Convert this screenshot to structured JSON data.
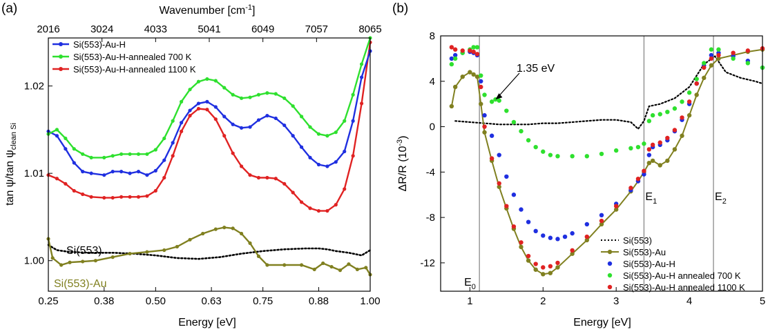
{
  "chart_data": [
    {
      "panel_label": "(a)",
      "type": "line",
      "xlabel": "Energy [eV]",
      "ylabel": "tan ψ/tan ψ",
      "ylabel_sub": "clean Si",
      "top_xlabel": "Wavenumber [cm",
      "top_xlabel_sup": "-1",
      "top_xlabel_end": "]",
      "xlim": [
        0.25,
        1.0
      ],
      "ylim": [
        0.9965,
        1.0255
      ],
      "xticks": [
        0.25,
        0.38,
        0.5,
        0.63,
        0.75,
        0.88,
        1.0
      ],
      "xtick_labels": [
        "0.25",
        "0.38",
        "0.50",
        "0.63",
        "0.75",
        "0.88",
        "1.00"
      ],
      "yticks": [
        1.0,
        1.01,
        1.02
      ],
      "ytick_labels": [
        "1.00",
        "1.01",
        "1.02"
      ],
      "top_xticks": [
        0.25,
        0.375,
        0.5,
        0.625,
        0.75,
        0.875,
        1.0
      ],
      "top_xtick_labels": [
        "2016",
        "3024",
        "4033",
        "5041",
        "6049",
        "7057",
        "8065"
      ],
      "legend_position": "top-left",
      "series": [
        {
          "name": "Si(553)-Au-H",
          "color": "#1f2fe0",
          "style": "line-markers",
          "x": [
            0.25,
            0.27,
            0.29,
            0.31,
            0.33,
            0.35,
            0.38,
            0.4,
            0.42,
            0.44,
            0.46,
            0.48,
            0.5,
            0.52,
            0.54,
            0.56,
            0.58,
            0.6,
            0.62,
            0.64,
            0.66,
            0.68,
            0.7,
            0.72,
            0.74,
            0.76,
            0.78,
            0.8,
            0.82,
            0.84,
            0.86,
            0.88,
            0.9,
            0.92,
            0.94,
            0.96,
            0.98,
            1.0
          ],
          "y": [
            1.0148,
            1.0143,
            1.0128,
            1.0112,
            1.0102,
            1.01,
            1.0098,
            1.0102,
            1.0102,
            1.01,
            1.0102,
            1.0098,
            1.0103,
            1.0115,
            1.0135,
            1.0158,
            1.0172,
            1.018,
            1.0182,
            1.0176,
            1.0165,
            1.0156,
            1.0152,
            1.0153,
            1.0161,
            1.0166,
            1.0163,
            1.0155,
            1.0143,
            1.013,
            1.0118,
            1.011,
            1.0108,
            1.0113,
            1.0125,
            1.016,
            1.021,
            1.024
          ]
        },
        {
          "name": "Si(553)-Au-H-annealed 700 K",
          "color": "#2ee02e",
          "style": "line-markers",
          "x": [
            0.25,
            0.27,
            0.29,
            0.31,
            0.33,
            0.35,
            0.38,
            0.4,
            0.42,
            0.44,
            0.46,
            0.48,
            0.5,
            0.52,
            0.54,
            0.56,
            0.58,
            0.6,
            0.62,
            0.64,
            0.66,
            0.68,
            0.7,
            0.72,
            0.74,
            0.76,
            0.78,
            0.8,
            0.82,
            0.84,
            0.86,
            0.88,
            0.9,
            0.92,
            0.94,
            0.96,
            0.98,
            1.0
          ],
          "y": [
            1.0145,
            1.015,
            1.014,
            1.0128,
            1.0122,
            1.0118,
            1.0118,
            1.012,
            1.0122,
            1.0122,
            1.0122,
            1.0122,
            1.0127,
            1.014,
            1.016,
            1.0182,
            1.0196,
            1.0205,
            1.0208,
            1.0206,
            1.0198,
            1.019,
            1.0186,
            1.0187,
            1.019,
            1.0192,
            1.0191,
            1.0186,
            1.0177,
            1.0165,
            1.0153,
            1.0145,
            1.0143,
            1.0147,
            1.016,
            1.019,
            1.0225,
            1.0255
          ]
        },
        {
          "name": "Si(553)-Au-H-annealed 1100 K",
          "color": "#e02222",
          "style": "line-markers",
          "x": [
            0.25,
            0.27,
            0.29,
            0.31,
            0.33,
            0.35,
            0.38,
            0.4,
            0.42,
            0.44,
            0.46,
            0.48,
            0.5,
            0.52,
            0.54,
            0.56,
            0.58,
            0.6,
            0.62,
            0.64,
            0.66,
            0.68,
            0.7,
            0.72,
            0.74,
            0.76,
            0.78,
            0.8,
            0.82,
            0.84,
            0.86,
            0.88,
            0.9,
            0.92,
            0.94,
            0.96,
            0.98,
            1.0
          ],
          "y": [
            1.0098,
            1.0094,
            1.0088,
            1.008,
            1.0076,
            1.0073,
            1.0072,
            1.0072,
            1.0073,
            1.0073,
            1.0073,
            1.0074,
            1.008,
            1.0095,
            1.012,
            1.0148,
            1.0166,
            1.0174,
            1.0173,
            1.0162,
            1.0143,
            1.0123,
            1.0108,
            1.0098,
            1.0095,
            1.0095,
            1.0094,
            1.0088,
            1.0078,
            1.0067,
            1.006,
            1.0057,
            1.0057,
            1.0064,
            1.0082,
            1.012,
            1.018,
            1.025
          ]
        },
        {
          "name": "Si(553)-Au",
          "color": "#808020",
          "style": "line-markers",
          "x": [
            0.25,
            0.26,
            0.28,
            0.3,
            0.33,
            0.36,
            0.4,
            0.44,
            0.48,
            0.52,
            0.55,
            0.58,
            0.61,
            0.64,
            0.66,
            0.68,
            0.7,
            0.72,
            0.74,
            0.76,
            0.8,
            0.84,
            0.87,
            0.89,
            0.91,
            0.93,
            0.95,
            0.97,
            0.99,
            1.0
          ],
          "y": [
            1.0025,
            1.0003,
            0.9995,
            0.9998,
            0.9999,
            1.0,
            1.0004,
            1.0008,
            1.001,
            1.0012,
            1.0016,
            1.0024,
            1.0031,
            1.0036,
            1.0038,
            1.0037,
            1.0031,
            1.002,
            1.0005,
            0.9995,
            0.9995,
            0.9995,
            0.999,
            0.9997,
            0.9993,
            0.9989,
            0.9996,
            0.999,
            0.9992,
            0.9984
          ]
        },
        {
          "name": "Si(553)",
          "color": "#000000",
          "style": "dotted",
          "x": [
            0.25,
            0.27,
            0.3,
            0.35,
            0.4,
            0.45,
            0.5,
            0.55,
            0.6,
            0.65,
            0.7,
            0.75,
            0.8,
            0.85,
            0.88,
            0.9,
            0.92,
            0.95,
            0.98,
            1.0
          ],
          "y": [
            1.0018,
            1.0012,
            1.001,
            1.0009,
            1.0009,
            1.0008,
            1.0006,
            1.0003,
            1.0002,
            1.0004,
            1.0008,
            1.0011,
            1.0013,
            1.0014,
            1.0014,
            1.0013,
            1.0011,
            1.0009,
            1.0006,
            1.0012
          ]
        }
      ],
      "curve_labels": [
        "Si(553)",
        "Si(553)-Au"
      ]
    },
    {
      "panel_label": "(b)",
      "type": "scatter",
      "xlabel": "Energy [eV]",
      "ylabel": "ΔR/R (10",
      "ylabel_sup": "-3",
      "ylabel_end": ")",
      "xlim": [
        0.6,
        5.0
      ],
      "ylim": [
        -14.5,
        8.0
      ],
      "xticks": [
        1,
        2,
        3,
        4,
        5
      ],
      "xtick_labels": [
        "1",
        "2",
        "3",
        "4",
        "5"
      ],
      "yticks": [
        8,
        4,
        0,
        -4,
        -8,
        -12
      ],
      "ytick_labels": [
        "8",
        "4",
        "0",
        "-4",
        "-8",
        "-12"
      ],
      "legend_position": "bottom-right",
      "annotation": {
        "text": "1.35 eV",
        "points_to": [
          1.35,
          2.4
        ]
      },
      "vertical_lines": [
        {
          "x": 1.13,
          "label": "E",
          "sub": "0"
        },
        {
          "x": 3.38,
          "label": "E",
          "sub": "1"
        },
        {
          "x": 4.33,
          "label": "E",
          "sub": "2"
        }
      ],
      "series": [
        {
          "name": "Si(553)",
          "color": "#000000",
          "style": "dotted",
          "x": [
            0.8,
            1.0,
            1.2,
            1.4,
            1.6,
            1.8,
            2.0,
            2.2,
            2.4,
            2.6,
            2.8,
            3.0,
            3.2,
            3.3,
            3.38,
            3.45,
            3.6,
            3.8,
            4.0,
            4.2,
            4.35,
            4.5,
            4.7,
            4.9,
            5.0
          ],
          "y": [
            0.5,
            0.4,
            0.3,
            0.2,
            0.2,
            0.2,
            0.3,
            0.3,
            0.4,
            0.5,
            0.6,
            0.6,
            0.4,
            -0.2,
            0.5,
            1.8,
            2.0,
            2.5,
            3.5,
            5.5,
            6.2,
            4.8,
            4.3,
            4.0,
            3.8
          ]
        },
        {
          "name": "Si(553)-Au",
          "color": "#808020",
          "style": "line-markers",
          "x": [
            0.75,
            0.8,
            0.9,
            1.0,
            1.05,
            1.1,
            1.15,
            1.2,
            1.3,
            1.4,
            1.5,
            1.6,
            1.7,
            1.8,
            1.9,
            2.0,
            2.1,
            2.2,
            2.4,
            2.6,
            2.8,
            3.0,
            3.2,
            3.3,
            3.38,
            3.45,
            3.5,
            3.6,
            3.7,
            3.8,
            3.9,
            4.0,
            4.1,
            4.2,
            4.3,
            4.4,
            4.6,
            4.8,
            5.0
          ],
          "y": [
            1.8,
            3.5,
            4.4,
            4.8,
            4.6,
            4.4,
            2.0,
            -0.5,
            -3.0,
            -5.3,
            -7.2,
            -9.0,
            -10.6,
            -11.8,
            -12.6,
            -13.0,
            -12.9,
            -12.4,
            -11.2,
            -10.0,
            -8.6,
            -7.3,
            -5.7,
            -4.8,
            -4.0,
            -3.2,
            -3.0,
            -3.4,
            -3.0,
            -2.0,
            -0.8,
            1.0,
            2.8,
            4.3,
            5.4,
            6.0,
            6.3,
            6.6,
            6.8
          ]
        },
        {
          "name": "Si(553)-Au-H",
          "color": "#1f2fe0",
          "style": "markers",
          "x": [
            0.75,
            0.8,
            0.9,
            1.0,
            1.05,
            1.1,
            1.15,
            1.2,
            1.3,
            1.4,
            1.5,
            1.6,
            1.7,
            1.8,
            1.9,
            2.0,
            2.1,
            2.2,
            2.3,
            2.4,
            2.6,
            2.8,
            3.0,
            3.2,
            3.3,
            3.38,
            3.45,
            3.5,
            3.6,
            3.7,
            3.8,
            3.9,
            4.0,
            4.1,
            4.2,
            4.3,
            4.4,
            4.6,
            4.8,
            5.0
          ],
          "y": [
            6.0,
            6.3,
            6.5,
            6.6,
            6.5,
            6.3,
            4.0,
            1.0,
            -0.8,
            -2.5,
            -4.4,
            -6.0,
            -7.3,
            -8.4,
            -9.2,
            -9.6,
            -9.8,
            -9.9,
            -9.7,
            -9.4,
            -8.6,
            -7.8,
            -6.8,
            -5.6,
            -4.8,
            -4.2,
            -2.5,
            -1.8,
            -1.6,
            -1.2,
            -0.4,
            0.6,
            2.0,
            3.8,
            5.4,
            6.3,
            6.5,
            6.2,
            5.8,
            5.2
          ]
        },
        {
          "name": "Si(553)-Au-H annealed 700 K",
          "color": "#2ee02e",
          "style": "markers",
          "x": [
            0.75,
            0.8,
            0.9,
            1.0,
            1.05,
            1.1,
            1.15,
            1.2,
            1.3,
            1.35,
            1.4,
            1.5,
            1.6,
            1.7,
            1.8,
            1.9,
            2.0,
            2.1,
            2.2,
            2.4,
            2.6,
            2.8,
            3.0,
            3.2,
            3.3,
            3.38,
            3.45,
            3.5,
            3.6,
            3.7,
            3.8,
            3.9,
            4.0,
            4.1,
            4.2,
            4.3,
            4.4,
            4.6,
            4.8,
            5.0
          ],
          "y": [
            5.5,
            6.0,
            6.5,
            6.8,
            7.0,
            7.0,
            4.5,
            2.8,
            2.2,
            2.4,
            2.3,
            1.4,
            0.4,
            -0.4,
            -1.2,
            -1.8,
            -2.2,
            -2.5,
            -2.6,
            -2.6,
            -2.6,
            -2.4,
            -2.1,
            -1.9,
            -1.8,
            -1.5,
            0.5,
            1.0,
            1.1,
            1.3,
            1.6,
            2.2,
            3.0,
            4.2,
            5.6,
            6.8,
            6.8,
            6.0,
            5.6,
            5.2
          ]
        },
        {
          "name": "Si(553)-Au-H annealed 1100 K",
          "color": "#e02222",
          "style": "markers",
          "x": [
            0.75,
            0.8,
            0.9,
            1.0,
            1.05,
            1.1,
            1.15,
            1.2,
            1.3,
            1.4,
            1.5,
            1.6,
            1.7,
            1.8,
            1.9,
            2.0,
            2.1,
            2.2,
            2.4,
            2.6,
            2.8,
            3.0,
            3.2,
            3.3,
            3.38,
            3.45,
            3.5,
            3.6,
            3.7,
            3.8,
            3.9,
            4.0,
            4.1,
            4.2,
            4.3,
            4.4,
            4.6,
            4.8,
            5.0
          ],
          "y": [
            7.0,
            6.8,
            6.7,
            6.7,
            6.6,
            6.4,
            3.5,
            0.0,
            -2.8,
            -5.0,
            -7.0,
            -8.8,
            -10.2,
            -11.4,
            -12.1,
            -12.4,
            -12.3,
            -12.0,
            -10.9,
            -9.7,
            -8.3,
            -7.0,
            -5.4,
            -4.6,
            -3.9,
            -2.0,
            -1.6,
            -1.4,
            -1.0,
            -0.3,
            0.8,
            2.2,
            3.8,
            5.2,
            6.0,
            6.3,
            6.5,
            6.7,
            6.9
          ]
        }
      ]
    }
  ]
}
